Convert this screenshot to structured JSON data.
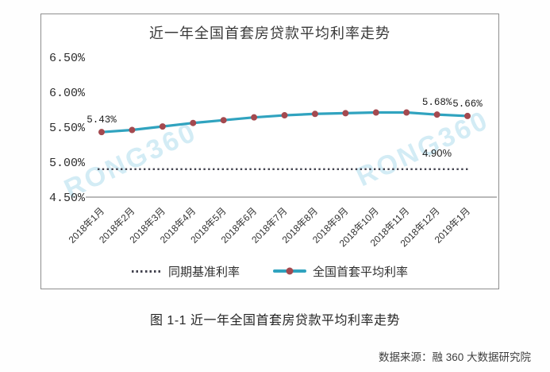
{
  "title": "近一年全国首套房贷款平均利率走势",
  "caption": "图 1-1 近一年全国首套房贷款平均利率走势",
  "source": "数据来源：融 360 大数据研究院",
  "watermark": {
    "text": "RONG360"
  },
  "colors": {
    "series_line": "#30a3bf",
    "series_marker": "#a4494f",
    "baseline_dotted": "#43434f",
    "axis": "#8f8f8f",
    "watermark": "#8ccde4"
  },
  "chart_data": {
    "type": "line",
    "title": "近一年全国首套房贷款平均利率走势",
    "categories": [
      "2018年1月",
      "2018年2月",
      "2018年3月",
      "2018年4月",
      "2018年5月",
      "2018年6月",
      "2018年7月",
      "2018年8月",
      "2018年9月",
      "2018年10月",
      "2018年11月",
      "2018年12月",
      "2019年1月"
    ],
    "series": [
      {
        "name": "全国首套平均利率",
        "type": "line-with-markers",
        "color": "#30a3bf",
        "marker_color": "#a4494f",
        "values": [
          5.43,
          5.46,
          5.51,
          5.56,
          5.6,
          5.64,
          5.67,
          5.69,
          5.7,
          5.71,
          5.71,
          5.68,
          5.66
        ]
      },
      {
        "name": "同期基准利率",
        "type": "dotted-line",
        "color": "#43434f",
        "values": [
          4.9,
          4.9,
          4.9,
          4.9,
          4.9,
          4.9,
          4.9,
          4.9,
          4.9,
          4.9,
          4.9,
          4.9,
          4.9
        ]
      }
    ],
    "y_ticks": [
      {
        "label": "6.50%",
        "value": 6.5
      },
      {
        "label": "6.00%",
        "value": 6.0
      },
      {
        "label": "5.50%",
        "value": 5.5
      },
      {
        "label": "5.00%",
        "value": 5.0
      },
      {
        "label": "4.50%",
        "value": 4.5
      }
    ],
    "ylim": [
      4.5,
      6.5
    ],
    "xlabel": "",
    "ylabel": "",
    "grid": false,
    "legend_position": "bottom",
    "point_labels": [
      {
        "series": 0,
        "index": 0,
        "text": "5.43%"
      },
      {
        "series": 0,
        "index": 11,
        "text": "5.68%"
      },
      {
        "series": 0,
        "index": 12,
        "text": "5.66%"
      },
      {
        "series": 1,
        "index": 11,
        "text": "4.90%"
      }
    ],
    "legend": [
      {
        "label": "同期基准利率",
        "swatch": "dotted"
      },
      {
        "label": "全国首套平均利率",
        "swatch": "line-marker"
      }
    ]
  }
}
